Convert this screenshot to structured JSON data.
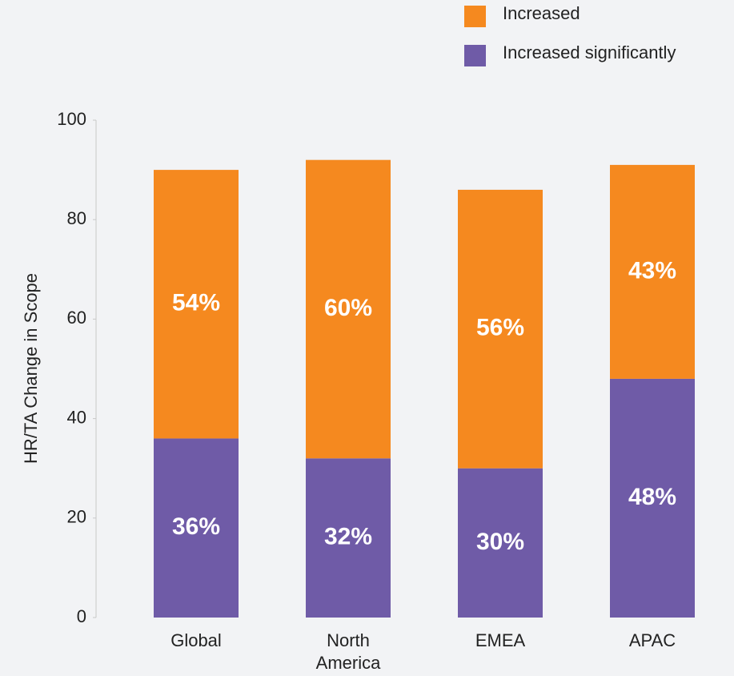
{
  "chart_data": {
    "type": "stacked_bar",
    "y_axis_label": "HR/TA Change in Scope",
    "categories": [
      "Global",
      "North America",
      "EMEA",
      "APAC"
    ],
    "series": [
      {
        "name": "Increased significantly",
        "color": "#6f5ba7",
        "values": [
          36,
          32,
          30,
          48
        ],
        "value_labels": [
          "36%",
          "32%",
          "30%",
          "48%"
        ]
      },
      {
        "name": "Increased",
        "color": "#f5891f",
        "values": [
          54,
          60,
          56,
          43
        ],
        "value_labels": [
          "54%",
          "60%",
          "56%",
          "43%"
        ]
      }
    ],
    "ylim": [
      0,
      100
    ],
    "yticks": [
      0,
      20,
      40,
      60,
      80,
      100
    ],
    "grid": false,
    "legend": "top-right"
  }
}
